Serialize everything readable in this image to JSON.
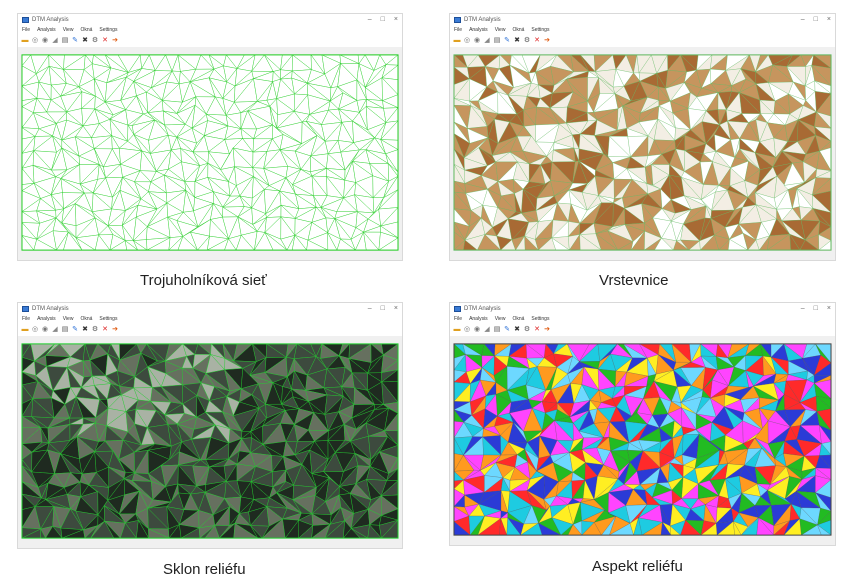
{
  "panels": [
    {
      "window_title": "DTM Analysis",
      "menu": [
        "File",
        "Analysis",
        "View",
        "Okná",
        "Settings"
      ],
      "window_buttons": [
        "–",
        "□",
        "×"
      ],
      "caption": "Trojuholníková sieť",
      "render_mode": "triangulation-network",
      "palette": [
        "#ffffff",
        "#ffffff",
        "#ffffff",
        "#ffffff"
      ],
      "edge_color": "#22cc22"
    },
    {
      "window_title": "DTM Analysis",
      "menu": [
        "File",
        "Analysis",
        "View",
        "Okná",
        "Settings"
      ],
      "window_buttons": [
        "–",
        "□",
        "×"
      ],
      "caption": "Vrstevnice",
      "render_mode": "contour-lines",
      "palette": [
        "#ffffff",
        "#f3eee4",
        "#c6955e",
        "#a86a34"
      ],
      "edge_color": "#5fb85f"
    },
    {
      "window_title": "DTM Analysis",
      "menu": [
        "File",
        "Analysis",
        "View",
        "Okná",
        "Settings"
      ],
      "window_buttons": [
        "–",
        "□",
        "×"
      ],
      "caption": "Sklon reliéfu",
      "render_mode": "slope-shading",
      "palette": [
        "#1f2a20",
        "#3d4a3e",
        "#66705f",
        "#a9b2a4"
      ],
      "edge_color": "#1fcc2c"
    },
    {
      "window_title": "DTM Analysis",
      "menu": [
        "File",
        "Analysis",
        "View",
        "Okná",
        "Settings"
      ],
      "window_buttons": [
        "–",
        "□",
        "×"
      ],
      "caption": "Aspekt reliéfu",
      "render_mode": "aspect-coloring",
      "palette": [
        "#ff2a2a",
        "#2b3bd6",
        "#ff44ff",
        "#1ecbe1",
        "#ffee22",
        "#22bb22",
        "#ff9a1f",
        "#6dd8ff"
      ],
      "edge_color": "#444444"
    }
  ],
  "toolbar_icons": [
    "open-folder-icon",
    "import-icon",
    "export-icon",
    "measure-icon",
    "delete-icon",
    "edit-icon",
    "close-icon",
    "settings-icon",
    "cancel-icon",
    "exit-icon"
  ]
}
